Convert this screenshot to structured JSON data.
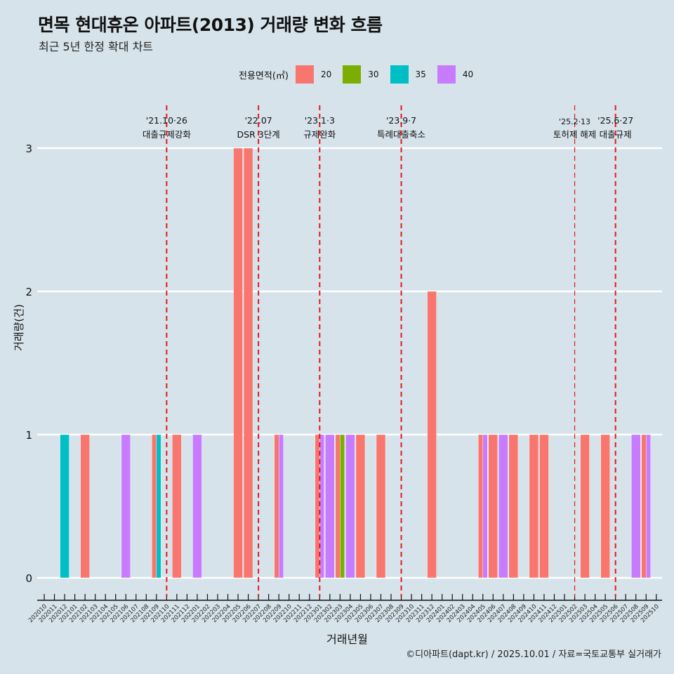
{
  "header": {
    "title": "면목 현대휴온 아파트(2013) 거래량 변화 흐름",
    "subtitle": "최근 5년 한정 확대 차트"
  },
  "legend": {
    "title": "전용면적(㎡)",
    "items": [
      {
        "label": "20",
        "color": "#F8766D"
      },
      {
        "label": "30",
        "color": "#7CAE00"
      },
      {
        "label": "35",
        "color": "#00BFC4"
      },
      {
        "label": "40",
        "color": "#C77CFF"
      }
    ]
  },
  "footer": "©디아파트(dapt.kr) / 2025.10.01 / 자료=국토교통부 실거래가",
  "chart_data": {
    "type": "bar",
    "title": "면목 현대휴온 아파트(2013) 거래량 변화 흐름",
    "subtitle": "최근 5년 한정 확대 차트",
    "xlabel": "거래년월",
    "ylabel": "거래량(건)",
    "ylim": [
      0,
      3
    ],
    "yticks": [
      0,
      1,
      2,
      3
    ],
    "grid": true,
    "legend_position": "top",
    "categories": [
      "202010",
      "202011",
      "202012",
      "202101",
      "202102",
      "202103",
      "202104",
      "202105",
      "202106",
      "202107",
      "202108",
      "202109",
      "202110",
      "202111",
      "202112",
      "202201",
      "202202",
      "202203",
      "202204",
      "202205",
      "202206",
      "202207",
      "202208",
      "202209",
      "202210",
      "202211",
      "202212",
      "202301",
      "202302",
      "202303",
      "202304",
      "202305",
      "202306",
      "202307",
      "202308",
      "202309",
      "202310",
      "202311",
      "202312",
      "202401",
      "202402",
      "202403",
      "202404",
      "202405",
      "202406",
      "202407",
      "202408",
      "202409",
      "202410",
      "202411",
      "202412",
      "202501",
      "202502",
      "202503",
      "202504",
      "202505",
      "202506",
      "202507",
      "202508",
      "202509",
      "202510"
    ],
    "series": [
      {
        "name": "20",
        "color": "#F8766D",
        "points": {
          "202102": 1,
          "202109": 1,
          "202111": 1,
          "202205": 3,
          "202206": 3,
          "202209": 1,
          "202301": 1,
          "202303": 1,
          "202305": 1,
          "202307": 1,
          "202312": 2,
          "202405": 1,
          "202406": 1,
          "202408": 1,
          "202410": 1,
          "202411": 1,
          "202503": 1,
          "202505": 1,
          "202509": 1
        }
      },
      {
        "name": "30",
        "color": "#7CAE00",
        "points": {
          "202303": 1
        }
      },
      {
        "name": "35",
        "color": "#00BFC4",
        "points": {
          "202012": 1,
          "202109": 1
        }
      },
      {
        "name": "40",
        "color": "#C77CFF",
        "points": {
          "202106": 1,
          "202201": 1,
          "202209": 1,
          "202301": 1,
          "202302": 1,
          "202304": 1,
          "202405": 1,
          "202407": 1,
          "202508": 1,
          "202509": 1
        }
      }
    ],
    "annotations": [
      {
        "month": "202110",
        "date": "'21.10·26",
        "label": "대출규제강화"
      },
      {
        "month": "202207",
        "date": "'22.07",
        "label": "DSR 3단계"
      },
      {
        "month": "202301",
        "date": "'23.1·3",
        "label": "규제완화"
      },
      {
        "month": "202309",
        "date": "'23.9·7",
        "label": "특례대출축소"
      },
      {
        "month": "202502",
        "date": "'25.2·13",
        "label": "토허제 해제",
        "thin": true
      },
      {
        "month": "202506",
        "date": "'25.6·27",
        "label": "대출규제"
      }
    ]
  }
}
